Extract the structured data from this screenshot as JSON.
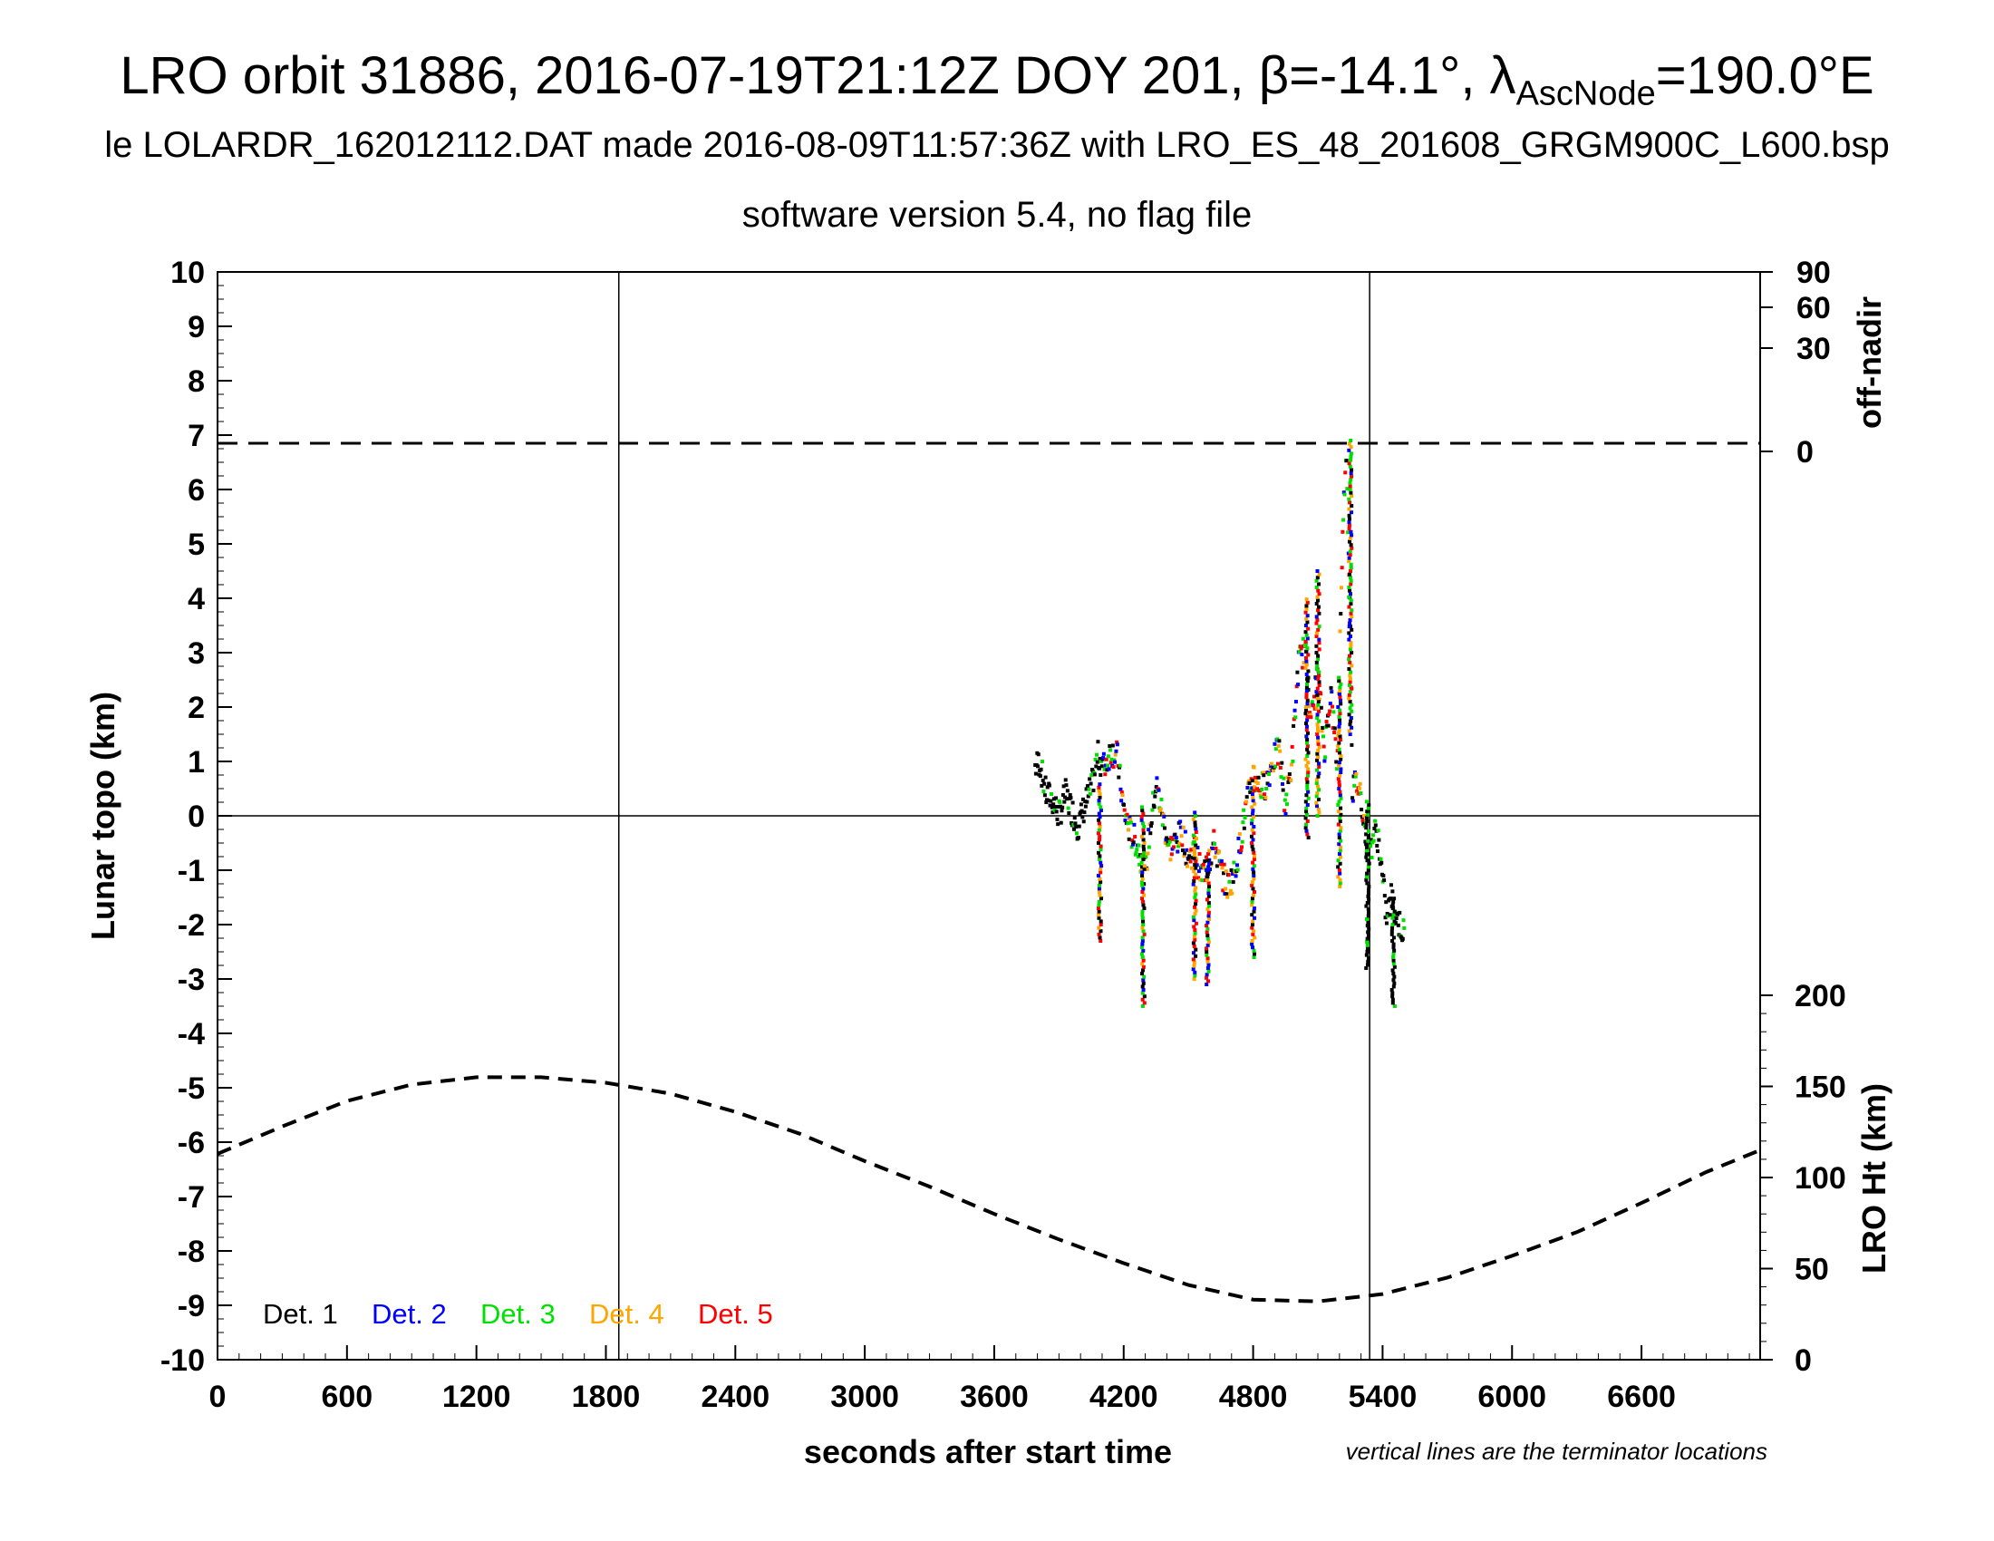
{
  "title_parts": {
    "main": "LRO orbit 31886, 2016-07-19T21:12Z DOY 201, β=-14.1°, λ",
    "sub": "AscNode",
    "end": "=190.0°E"
  },
  "subtitle1": "le LOLARDR_162012112.DAT made 2016-08-09T11:57:36Z with LRO_ES_48_201608_GRGM900C_L600.bsp",
  "subtitle2": "software version 5.4, no flag file",
  "chart_data": {
    "type": "scatter",
    "xlabel": "seconds after start time",
    "ylabel": "Lunar topo (km)",
    "xlim": [
      0,
      7150
    ],
    "ylim": [
      -10,
      10
    ],
    "x_ticks": [
      0,
      600,
      1200,
      1800,
      2400,
      3000,
      3600,
      4200,
      4800,
      5400,
      6000,
      6600
    ],
    "y_ticks": [
      10,
      9,
      8,
      7,
      6,
      5,
      4,
      3,
      2,
      1,
      0,
      -1,
      -2,
      -3,
      -4,
      -5,
      -6,
      -7,
      -8,
      -9,
      -10
    ],
    "right_axis_top": {
      "label": "off-nadir",
      "ticks": [
        90,
        60,
        30,
        0
      ],
      "ticks_y_topo": [
        10,
        9.35,
        8.6,
        6.7
      ],
      "offnadir_dashed_y": 6.85
    },
    "right_axis_bottom": {
      "label": "LRO Ht (km)",
      "ticks": [
        200,
        150,
        100,
        50,
        0
      ],
      "ylim_ht": [
        0,
        300
      ]
    },
    "terminator_lines_x": [
      1860,
      5340
    ],
    "note": "vertical lines are the terminator locations",
    "legend": [
      {
        "label": "Det. 1",
        "color": "#000000"
      },
      {
        "label": "Det. 2",
        "color": "#0000ff"
      },
      {
        "label": "Det. 3",
        "color": "#00e000"
      },
      {
        "label": "Det. 4",
        "color": "#ffa500"
      },
      {
        "label": "Det. 5",
        "color": "#ff0000"
      }
    ],
    "legend_placement": "bottom-left",
    "lro_height_km": {
      "x": [
        0,
        300,
        600,
        900,
        1200,
        1500,
        1800,
        2100,
        2400,
        2700,
        3000,
        3300,
        3600,
        3900,
        4200,
        4500,
        4800,
        5100,
        5400,
        5700,
        6000,
        6300,
        6600,
        6900,
        7150
      ],
      "y": [
        113,
        128,
        142,
        151,
        155,
        155,
        152,
        146,
        136,
        124,
        109,
        95,
        80,
        66,
        53,
        41,
        33,
        32,
        36,
        45,
        57,
        70,
        86,
        103,
        115
      ]
    },
    "topo_profile": {
      "x": [
        3790,
        3810,
        3840,
        3870,
        3900,
        3930,
        3960,
        3990,
        4020,
        4050,
        4080,
        4110,
        4140,
        4170,
        4200,
        4230,
        4260,
        4290,
        4300,
        4320,
        4350,
        4380,
        4410,
        4440,
        4470,
        4500,
        4530,
        4560,
        4590,
        4620,
        4650,
        4680,
        4710,
        4740,
        4770,
        4800,
        4830,
        4860,
        4890,
        4920,
        4950,
        4980,
        5010,
        5040,
        5070,
        5100,
        5130,
        5160,
        5190,
        5210,
        5230,
        5250,
        5260,
        5280,
        5300,
        5320,
        5340,
        5360,
        5380,
        5400,
        5420,
        5440,
        5460,
        5480,
        5500
      ],
      "y": [
        0.9,
        1.0,
        0.4,
        0.3,
        0.0,
        0.4,
        0.1,
        -0.2,
        0.2,
        0.5,
        1.1,
        0.9,
        1.2,
        1.1,
        0.1,
        -0.3,
        -0.5,
        -0.9,
        -1.1,
        -0.3,
        0.6,
        0.0,
        -0.6,
        -0.5,
        -0.3,
        -0.8,
        -0.6,
        -1.1,
        -0.9,
        -0.5,
        -1.0,
        -1.3,
        -1.1,
        -0.5,
        0.2,
        0.8,
        0.5,
        0.6,
        1.0,
        1.2,
        0.2,
        1.0,
        2.8,
        3.1,
        1.8,
        2.6,
        1.2,
        2.3,
        0.9,
        4.5,
        6.8,
        3.8,
        0.5,
        0.6,
        0.4,
        -0.3,
        -0.7,
        -0.3,
        -0.4,
        -1.2,
        -1.9,
        -1.5,
        -1.8,
        -2.0,
        -2.2
      ]
    },
    "topo_spikes": [
      {
        "x": 4090,
        "lo": -2.3,
        "hi": 0.6
      },
      {
        "x": 4290,
        "lo": -3.5,
        "hi": 0.2
      },
      {
        "x": 4530,
        "lo": -3.0,
        "hi": 0.1
      },
      {
        "x": 4590,
        "lo": -3.1,
        "hi": -0.6
      },
      {
        "x": 4800,
        "lo": -2.6,
        "hi": 0.5
      },
      {
        "x": 5050,
        "lo": -0.4,
        "hi": 4.0
      },
      {
        "x": 5100,
        "lo": 0.0,
        "hi": 4.5
      },
      {
        "x": 5200,
        "lo": -1.3,
        "hi": 2.6
      },
      {
        "x": 5250,
        "lo": 1.5,
        "hi": 6.9
      },
      {
        "x": 5330,
        "lo": -2.8,
        "hi": 0.3
      },
      {
        "x": 5450,
        "lo": -3.5,
        "hi": -1.5
      }
    ]
  }
}
